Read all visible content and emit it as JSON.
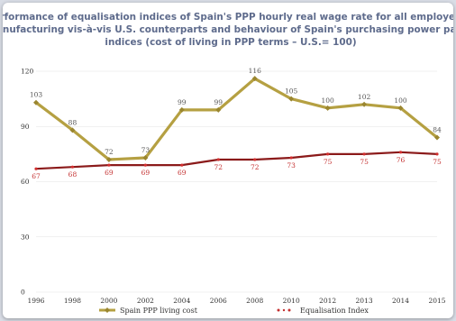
{
  "chart_data": {
    "type": "line",
    "title_lines": [
      "Performance of equalisation indices of Spain's PPP hourly real wage rate for all employed in",
      "manufacturing vis-à-vis U.S. counterparts and behaviour of Spain's purchasing power parity",
      "indices (cost of living in PPP terms – U.S.= 100)"
    ],
    "xlabel": "",
    "ylabel": "",
    "categories": [
      "1996",
      "1998",
      "2000",
      "2002",
      "2004",
      "2006",
      "2008",
      "2010",
      "2012",
      "2013",
      "2014",
      "2015"
    ],
    "y_ticks": [
      0,
      30,
      60,
      90,
      120
    ],
    "ylim": [
      0,
      120
    ],
    "grid": true,
    "legend_position": "bottom",
    "series": [
      {
        "name": "Spain PPP living cost",
        "color": "#b5a042",
        "marker": "diamond",
        "values": [
          103,
          88,
          72,
          73,
          99,
          99,
          116,
          105,
          100,
          102,
          100,
          84
        ]
      },
      {
        "name": "Equalisation Index",
        "color": "#8b1a1a",
        "marker": "circle",
        "values": [
          67,
          68,
          69,
          69,
          69,
          72,
          72,
          73,
          75,
          75,
          76,
          75
        ]
      }
    ]
  }
}
